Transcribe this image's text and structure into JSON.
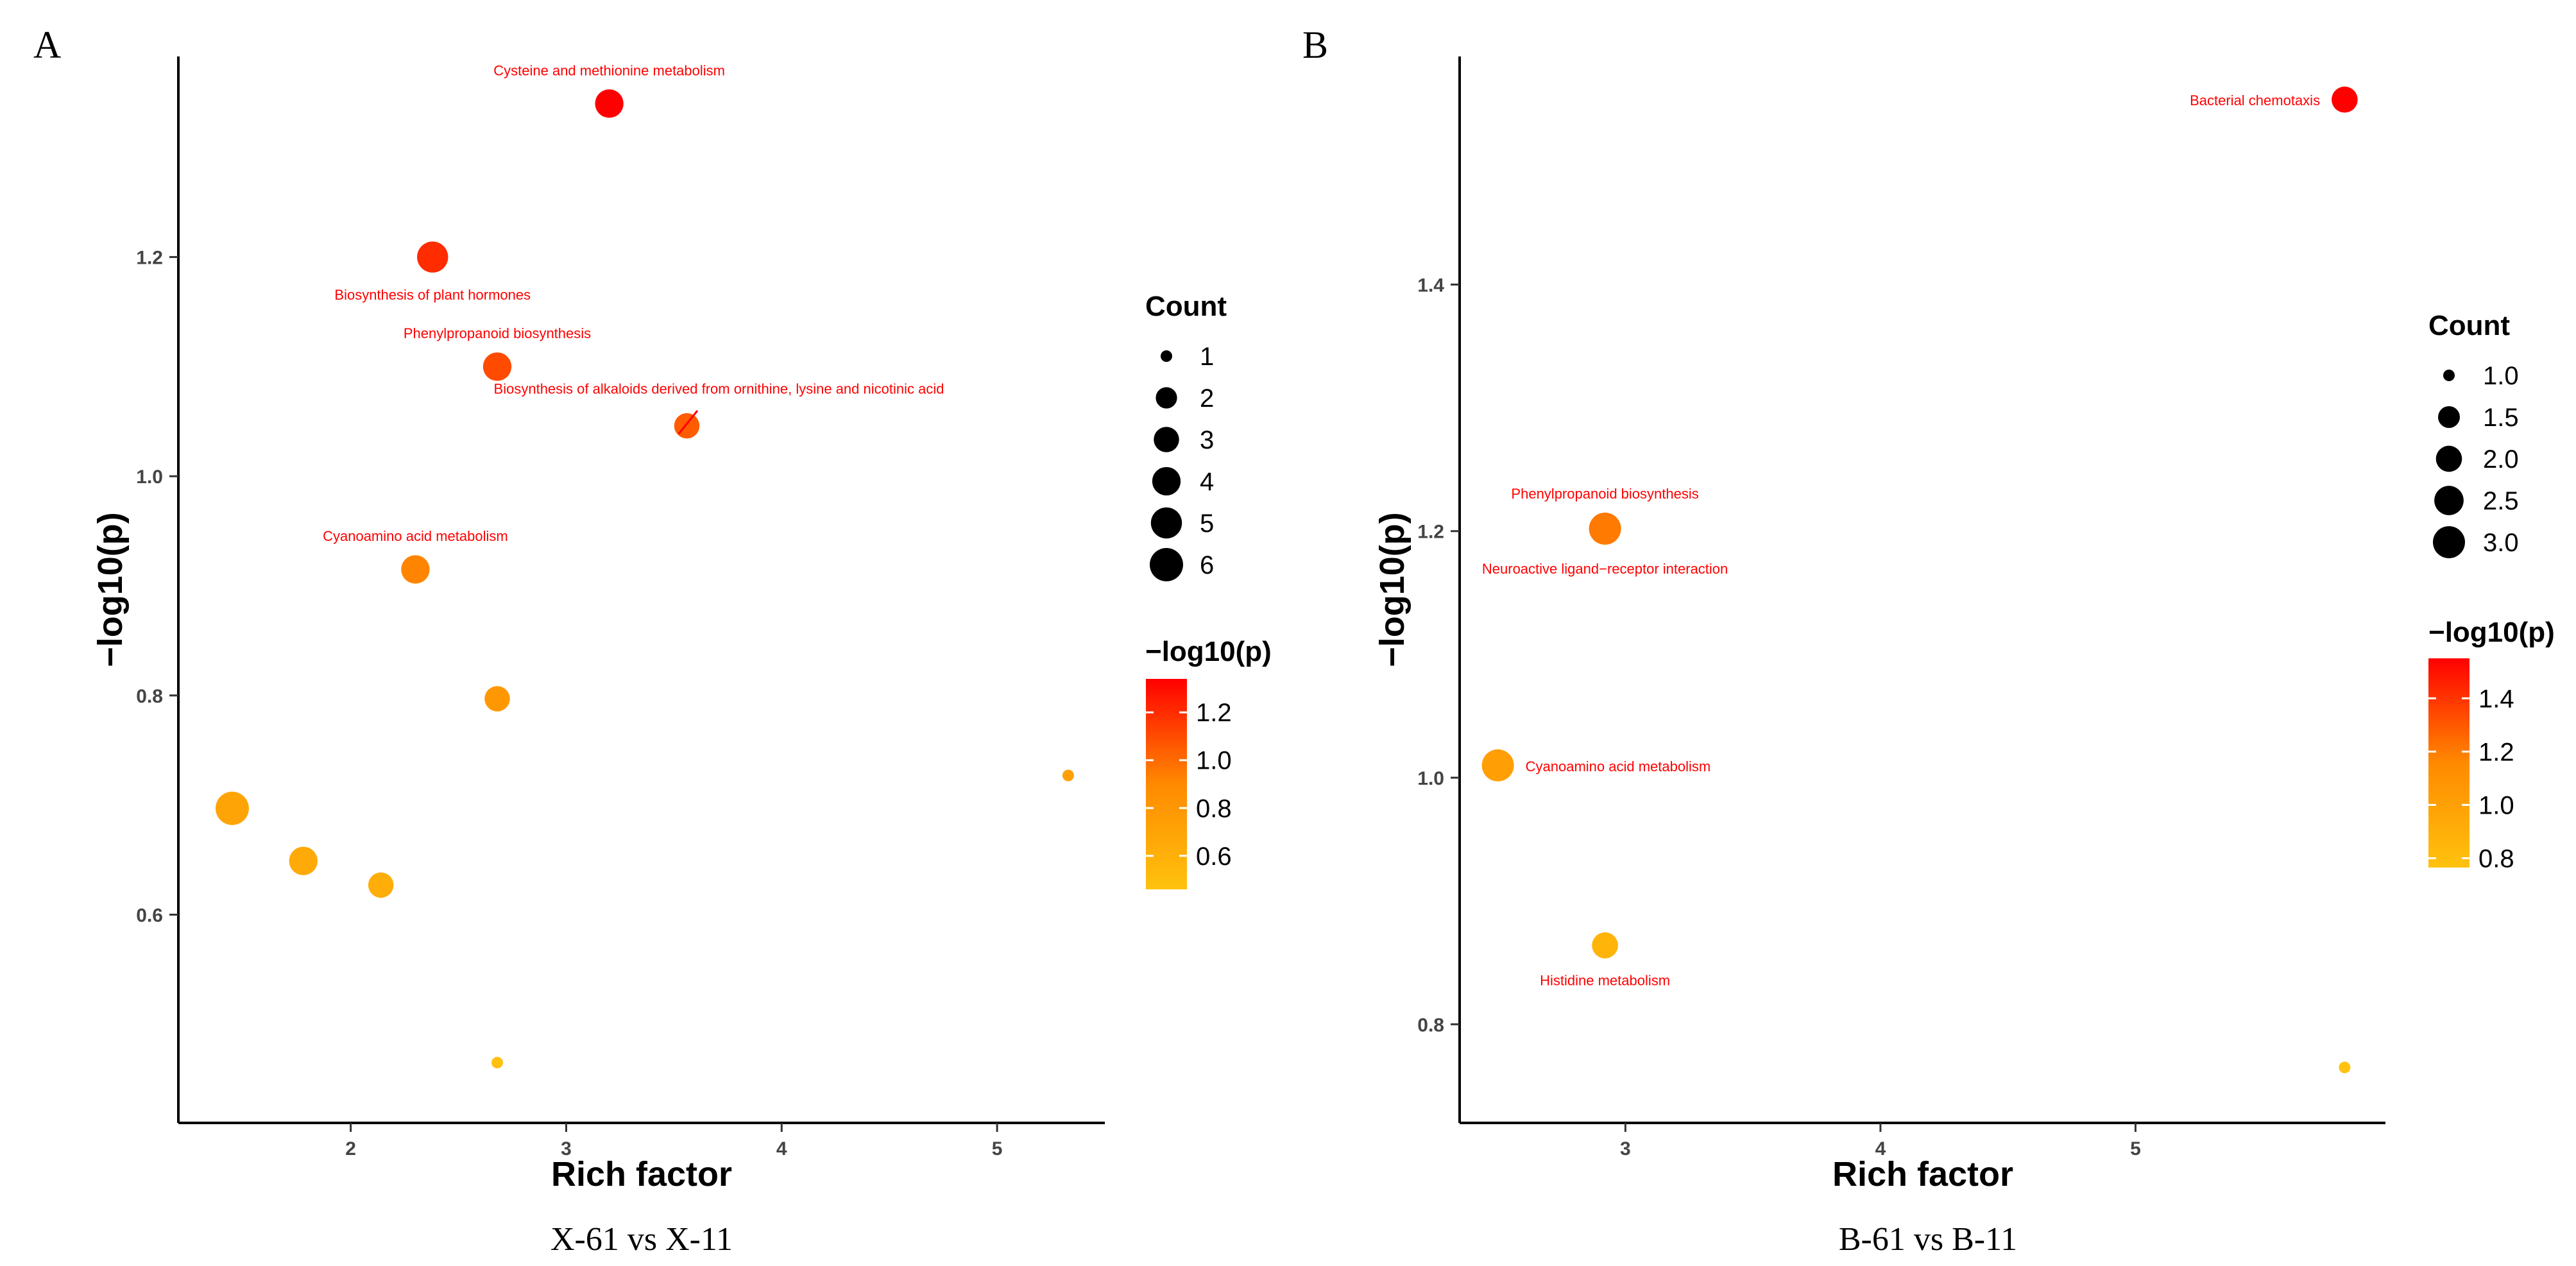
{
  "figure": {
    "panels": [
      {
        "letter": "A",
        "caption": "X-61 vs X-11"
      },
      {
        "letter": "B",
        "caption": "B-61 vs B-11"
      }
    ]
  },
  "colors": {
    "low": "#ffc20e",
    "mid": "#ff8a00",
    "high": "#ff0000",
    "label": "#ff0000",
    "axis": "#000000"
  },
  "chart_data": [
    {
      "type": "scatter",
      "panel": "A",
      "title": "X-61 vs X-11",
      "xlabel": "Rich factor",
      "ylabel": "−log10(p)",
      "xlim": [
        1.2,
        5.5
      ],
      "ylim": [
        0.41,
        1.383
      ],
      "xticks": [
        2,
        3,
        4,
        5
      ],
      "yticks": [
        0.6,
        0.8,
        1.0,
        1.2
      ],
      "ytick_labels": [
        "0.6",
        "0.8",
        "1.0",
        "1.2"
      ],
      "grid": false,
      "points": [
        {
          "x": 3.2,
          "y": 1.34,
          "count": 4,
          "label": "Cysteine and methionine metabolism",
          "label_pos": "above"
        },
        {
          "x": 2.38,
          "y": 1.2,
          "count": 5,
          "label": "Biosynthesis of plant hormones",
          "label_pos": "below"
        },
        {
          "x": 2.68,
          "y": 1.1,
          "count": 4,
          "label": "Phenylpropanoid biosynthesis",
          "label_pos": "above"
        },
        {
          "x": 3.56,
          "y": 1.046,
          "count": 3,
          "label": "Biosynthesis of alkaloids derived from ornithine, lysine and nicotinic acid",
          "label_pos": "above-right"
        },
        {
          "x": 2.3,
          "y": 0.915,
          "count": 4,
          "label": "Cyanoamino acid metabolism",
          "label_pos": "above"
        },
        {
          "x": 2.68,
          "y": 0.797,
          "count": 3,
          "label": ""
        },
        {
          "x": 1.45,
          "y": 0.697,
          "count": 6,
          "label": ""
        },
        {
          "x": 1.78,
          "y": 0.649,
          "count": 4,
          "label": ""
        },
        {
          "x": 2.14,
          "y": 0.627,
          "count": 3,
          "label": ""
        },
        {
          "x": 5.33,
          "y": 0.727,
          "count": 1,
          "label": ""
        },
        {
          "x": 2.68,
          "y": 0.465,
          "count": 1,
          "label": ""
        }
      ],
      "size_legend": {
        "title": "Count",
        "values": [
          1,
          2,
          3,
          4,
          5,
          6
        ],
        "labels": [
          "1",
          "2",
          "3",
          "4",
          "5",
          "6"
        ]
      },
      "color_legend": {
        "title": "−log10(p)",
        "min": 0.46,
        "max": 1.34,
        "ticks": [
          0.6,
          0.8,
          1.0,
          1.2
        ],
        "tick_labels": [
          "0.6",
          "0.8",
          "1.0",
          "1.2"
        ]
      }
    },
    {
      "type": "scatter",
      "panel": "B",
      "title": "B-61 vs B-11",
      "xlabel": "Rich factor",
      "ylabel": "−log10(p)",
      "xlim": [
        2.35,
        5.98
      ],
      "ylim": [
        0.72,
        1.585
      ],
      "xticks": [
        3,
        4,
        5
      ],
      "yticks": [
        0.8,
        1.0,
        1.2,
        1.4
      ],
      "ytick_labels": [
        "0.8",
        "1.0",
        "1.2",
        "1.4"
      ],
      "grid": false,
      "points": [
        {
          "x": 5.82,
          "y": 1.55,
          "count": 2,
          "label": "Bacterial chemotaxis",
          "label_pos": "left"
        },
        {
          "x": 2.92,
          "y": 1.202,
          "count": 3,
          "label": "Phenylpropanoid biosynthesis",
          "label_pos": "above"
        },
        {
          "x": 2.92,
          "y": 1.202,
          "count": 1,
          "label": "Neuroactive ligand−receptor interaction",
          "label_pos": "below"
        },
        {
          "x": 2.5,
          "y": 1.01,
          "count": 3,
          "label": "Cyanoamino acid metabolism",
          "label_pos": "right"
        },
        {
          "x": 2.92,
          "y": 0.864,
          "count": 2,
          "label": "Histidine metabolism",
          "label_pos": "below"
        },
        {
          "x": 5.82,
          "y": 0.765,
          "count": 1,
          "label": ""
        }
      ],
      "size_legend": {
        "title": "Count",
        "values": [
          1.0,
          1.5,
          2.0,
          2.5,
          3.0
        ],
        "labels": [
          "1.0",
          "1.5",
          "2.0",
          "2.5",
          "3.0"
        ]
      },
      "color_legend": {
        "title": "−log10(p)",
        "min": 0.765,
        "max": 1.55,
        "ticks": [
          0.8,
          1.0,
          1.2,
          1.4
        ],
        "tick_labels": [
          "0.8",
          "1.0",
          "1.2",
          "1.4"
        ]
      }
    }
  ]
}
